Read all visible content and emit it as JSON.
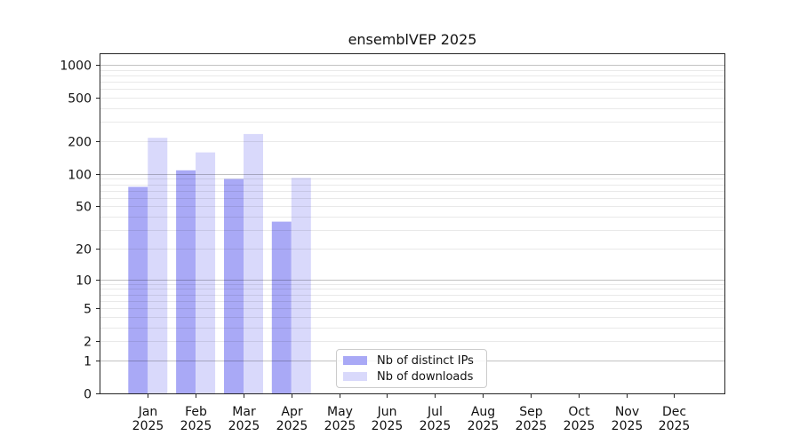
{
  "chart_data": {
    "type": "bar",
    "title": "ensemblVEP 2025",
    "year": "2025",
    "categories": [
      "Jan",
      "Feb",
      "Mar",
      "Apr",
      "May",
      "Jun",
      "Jul",
      "Aug",
      "Sep",
      "Oct",
      "Nov",
      "Dec"
    ],
    "series": [
      {
        "key": "distinct-ips",
        "name": "Nb of distinct IPs",
        "color": "#a9a9f6",
        "values": [
          76,
          108,
          90,
          36,
          0,
          0,
          0,
          0,
          0,
          0,
          0,
          0
        ]
      },
      {
        "key": "downloads",
        "name": "Nb of downloads",
        "color": "#d9d9fb",
        "values": [
          215,
          158,
          233,
          92,
          0,
          0,
          0,
          0,
          0,
          0,
          0,
          0
        ]
      }
    ],
    "xlabel": "",
    "ylabel": "",
    "yscale": "log1p",
    "ylim": [
      0,
      1250
    ],
    "yticks": [
      1000,
      500,
      200,
      100,
      50,
      20,
      10,
      5,
      2,
      1,
      0
    ],
    "grid": {
      "on": true,
      "major": [
        1,
        10,
        100,
        1000
      ],
      "minor": [
        2,
        3,
        4,
        5,
        6,
        7,
        8,
        9,
        20,
        30,
        40,
        50,
        60,
        70,
        80,
        90,
        200,
        300,
        400,
        500,
        600,
        700,
        800,
        900
      ]
    },
    "legend_position": "lower-center",
    "colors": {
      "grid_major": "rgba(0,0,0,0.24)",
      "grid_minor": "rgba(0,0,0,0.085)",
      "spine": "#262626",
      "tick_label": "#111111"
    }
  }
}
